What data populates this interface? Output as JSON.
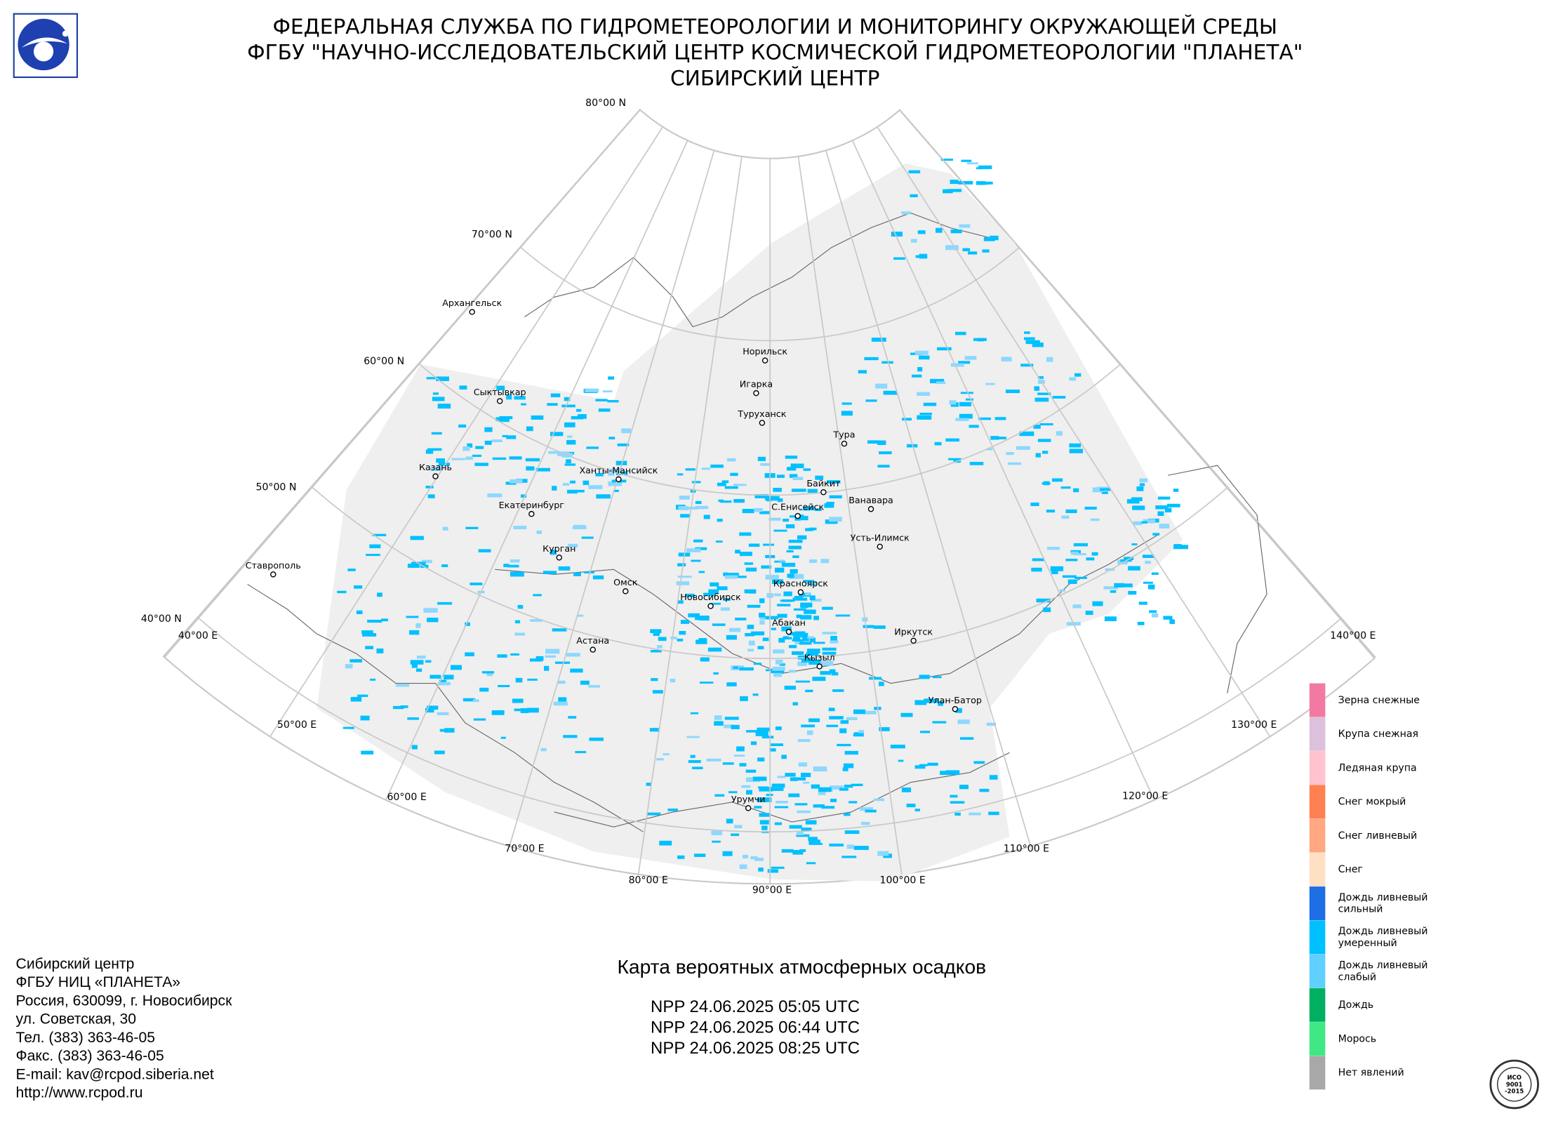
{
  "header": {
    "lines": [
      "ФЕДЕРАЛЬНАЯ СЛУЖБА ПО ГИДРОМЕТЕОРОЛОГИИ И МОНИТОРИНГУ ОКРУЖАЮЩЕЙ СРЕДЫ",
      "ФГБУ \"НАУЧНО-ИССЛЕДОВАТЕЛЬСКИЙ ЦЕНТР КОСМИЧЕСКОЙ ГИДРОМЕТЕОРОЛОГИИ \"ПЛАНЕТА\"",
      "СИБИРСКИЙ ЦЕНТР"
    ]
  },
  "map": {
    "lat_labels": [
      "80°00 N",
      "70°00 N",
      "60°00 N",
      "50°00 N",
      "40°00 N"
    ],
    "lon_labels": [
      "40°00 E",
      "50°00 E",
      "60°00 E",
      "70°00 E",
      "80°00 E",
      "90°00 E",
      "100°00 E",
      "110°00 E",
      "120°00 E",
      "130°00 E",
      "140°00 E"
    ],
    "cities": [
      "Архангельск",
      "Сыктывкар",
      "Казань",
      "Ханты-Мансийск",
      "Екатеринбург",
      "Курган",
      "Ставрополь",
      "Омск",
      "Астана",
      "Новосибирск",
      "Норильск",
      "Игарка",
      "Туруханск",
      "Тура",
      "Байкит",
      "Ванавара",
      "С.Енисейск",
      "Усть-Илимск",
      "Красноярск",
      "Абакан",
      "Кызыл",
      "Иркутск",
      "Улан-Батор",
      "Урумчи"
    ]
  },
  "legend": {
    "items": [
      {
        "label": [
          "Зерна снежные"
        ],
        "color": "#f27aa2"
      },
      {
        "label": [
          "Крупа снежная"
        ],
        "color": "#dcc0dc"
      },
      {
        "label": [
          "Ледяная крупа"
        ],
        "color": "#ffc2ce"
      },
      {
        "label": [
          "Снег мокрый"
        ],
        "color": "#ff8050"
      },
      {
        "label": [
          "Снег ливневый"
        ],
        "color": "#ffa882"
      },
      {
        "label": [
          "Снег"
        ],
        "color": "#ffe0c2"
      },
      {
        "label": [
          "Дождь ливневый",
          "сильный"
        ],
        "color": "#1e6ee6"
      },
      {
        "label": [
          "Дождь ливневый",
          "умеренный"
        ],
        "color": "#00c0ff"
      },
      {
        "label": [
          "Дождь ливневый",
          "слабый"
        ],
        "color": "#5fd0ff"
      },
      {
        "label": [
          "Дождь"
        ],
        "color": "#00b060"
      },
      {
        "label": [
          "Морось"
        ],
        "color": "#40e884"
      },
      {
        "label": [
          "Нет явлений"
        ],
        "color": "#a8a8a8"
      }
    ]
  },
  "contact": {
    "lines": [
      "Сибирский центр",
      "ФГБУ НИЦ «ПЛАНЕТА»",
      "Россия, 630099, г. Новосибирск",
      "ул. Советская, 30",
      "Тел. (383) 363-46-05",
      "Факс. (383) 363-46-05",
      "E-mail: kav@rcpod.siberia.net",
      "http://www.rcpod.ru"
    ]
  },
  "title": "Карта вероятных атмосферных осадков",
  "passes": [
    "NPP 24.06.2025  05:05 UTC",
    "NPP 24.06.2025  06:44 UTC",
    "NPP 24.06.2025  08:25 UTC"
  ],
  "badge": [
    "ИСО",
    "9001",
    "-2015"
  ]
}
